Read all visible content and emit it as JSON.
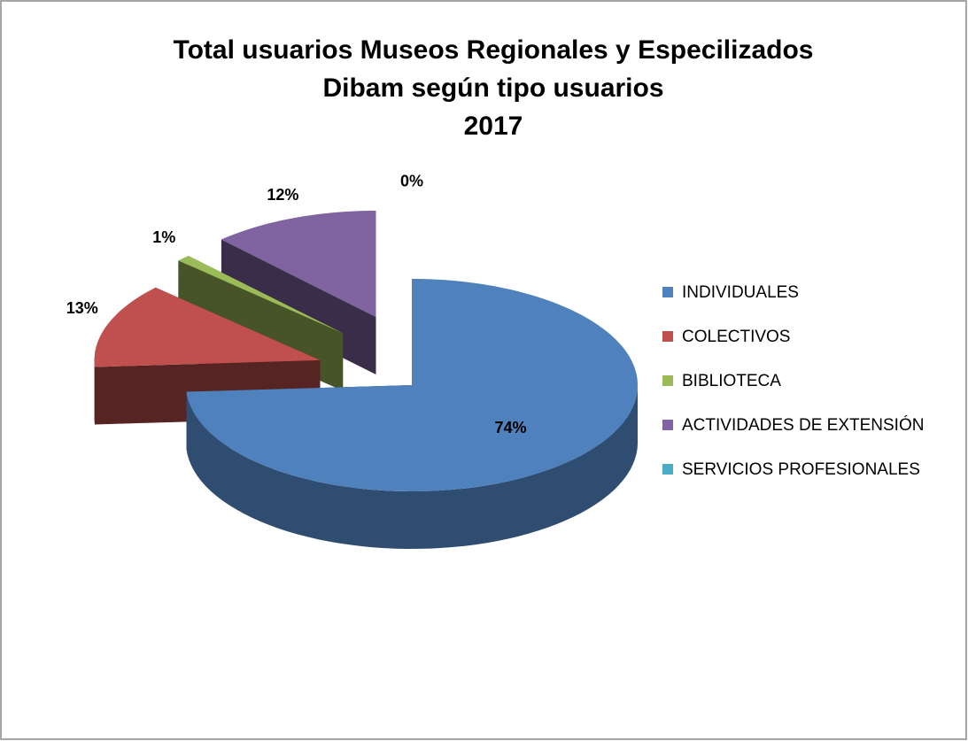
{
  "chart_data": {
    "type": "pie",
    "title": [
      "Total usuarios Museos Regionales y Especilizados",
      "Dibam según tipo usuarios",
      "2017"
    ],
    "categories": [
      "INDIVIDUALES",
      "COLECTIVOS",
      "BIBLIOTECA",
      "ACTIVIDADES DE EXTENSIÓN",
      "SERVICIOS PROFESIONALES"
    ],
    "values": [
      74,
      13,
      1,
      12,
      0
    ],
    "value_labels": [
      "74%",
      "13%",
      "1%",
      "12%",
      "0%"
    ],
    "colors": [
      "#4f81bd",
      "#c0504d",
      "#9bbb59",
      "#8064a2",
      "#4bacc6"
    ],
    "legend": "right"
  }
}
